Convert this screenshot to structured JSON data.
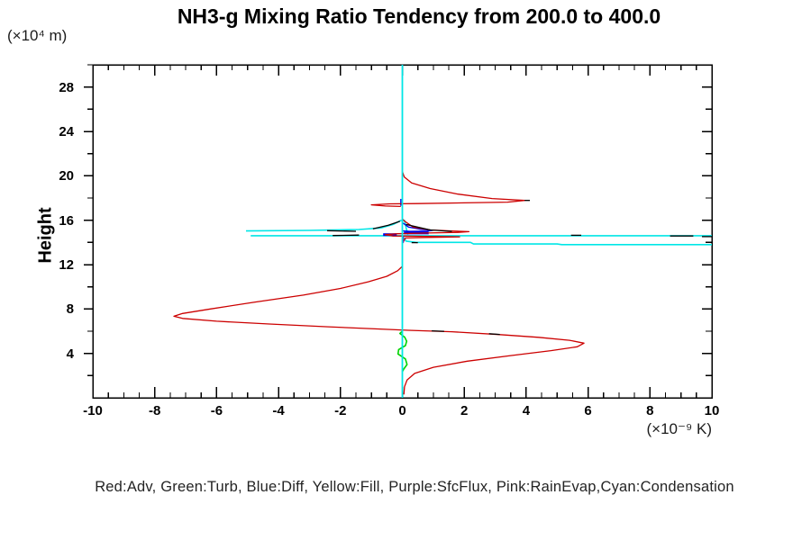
{
  "title": "NH3-g Mixing Ratio Tendency from 200.0 to 400.0",
  "y_unit_label": "(×10⁴ m)",
  "x_unit_label": "(×10⁻⁹ K)",
  "y_axis_label": "Height",
  "legend_text": "Red:Adv, Green:Turb, Blue:Diff, Yellow:Fill, Purple:SfcFlux, Pink:RainEvap,Cyan:Condensation",
  "colors": {
    "background": "#ffffff",
    "axis": "#000000",
    "red_adv": "#cc0000",
    "green_turb": "#00d400",
    "blue_diff": "#0000e6",
    "purple_sfcflux": "#7a00b8",
    "cyan_condensation": "#00e6e6",
    "black_overlay": "#000000"
  },
  "chart_data": {
    "type": "line",
    "title": "NH3-g Mixing Ratio Tendency from 200.0 to 400.0",
    "xlabel": "(×10⁻⁹ K)",
    "ylabel": "Height (×10⁴ m)",
    "xlim": [
      -10,
      10
    ],
    "ylim": [
      0,
      30
    ],
    "grid": false,
    "legend_position": "bottom-text-line",
    "x_major_ticks": [
      -10,
      -8,
      -6,
      -4,
      -2,
      0,
      2,
      4,
      6,
      8,
      10
    ],
    "x_minor_step": 0.5,
    "y_major_ticks": [
      4,
      8,
      12,
      16,
      20,
      24,
      28
    ],
    "y_minor_step": 2,
    "series": [
      {
        "name": "condensation-horizontals",
        "legend": "Cyan:Condensation",
        "color": "#00e6e6",
        "width": 1.6,
        "lines": [
          [
            [
              -5.05,
              15.03
            ],
            [
              -3.0,
              15.08
            ],
            [
              -1.4,
              15.16
            ],
            [
              -0.7,
              15.3
            ],
            [
              -0.3,
              15.62
            ],
            [
              -0.05,
              15.97
            ],
            [
              0.07,
              15.97
            ],
            [
              0.13,
              15.2
            ],
            [
              0.18,
              14.7
            ]
          ],
          [
            [
              -4.9,
              14.6
            ],
            [
              10,
              14.6
            ]
          ],
          [
            [
              0.05,
              14.45
            ],
            [
              0.12,
              14.12
            ],
            [
              0.45,
              14.0
            ],
            [
              2.2,
              14.0
            ],
            [
              2.3,
              13.86
            ],
            [
              5.0,
              13.86
            ],
            [
              5.15,
              13.8
            ],
            [
              10,
              13.8
            ]
          ]
        ]
      },
      {
        "name": "diff",
        "legend": "Blue:Diff",
        "color": "#0000e6",
        "width": 1.3,
        "lines": [
          [
            [
              0,
              15.78
            ],
            [
              0.2,
              15.38
            ],
            [
              0.6,
              15.18
            ],
            [
              1.0,
              15.1
            ],
            [
              0.8,
              15.02
            ],
            [
              0.25,
              15.0
            ],
            [
              0,
              15.04
            ]
          ],
          [
            [
              -0.05,
              17.92
            ],
            [
              -0.05,
              17.3
            ]
          ]
        ]
      },
      {
        "name": "diff-thick-segments",
        "legend": "Blue:Diff",
        "color": "#0000e6",
        "width": 3,
        "lines": [
          [
            [
              -0.62,
              14.7
            ],
            [
              -0.18,
              14.7
            ]
          ],
          [
            [
              0.05,
              14.85
            ],
            [
              0.85,
              14.85
            ]
          ]
        ]
      },
      {
        "name": "adv",
        "legend": "Red:Adv",
        "color": "#cc0000",
        "width": 1.3,
        "lines": [
          [
            [
              0,
              20.4
            ],
            [
              0.06,
              19.9
            ],
            [
              0.3,
              19.35
            ],
            [
              0.9,
              18.85
            ],
            [
              1.8,
              18.35
            ],
            [
              2.9,
              17.95
            ],
            [
              3.95,
              17.78
            ],
            [
              3.4,
              17.63
            ],
            [
              2.0,
              17.56
            ],
            [
              0.5,
              17.5
            ],
            [
              -0.4,
              17.47
            ],
            [
              -1.0,
              17.38
            ],
            [
              -0.55,
              17.28
            ],
            [
              -0.05,
              17.24
            ]
          ],
          [
            [
              0,
              16.12
            ],
            [
              0.08,
              15.9
            ],
            [
              0.35,
              15.38
            ],
            [
              0.9,
              15.12
            ],
            [
              1.6,
              15.03
            ],
            [
              2.15,
              14.97
            ],
            [
              1.8,
              14.9
            ],
            [
              0.8,
              14.85
            ],
            [
              -0.15,
              14.78
            ],
            [
              -0.55,
              14.7
            ],
            [
              -0.3,
              14.58
            ],
            [
              0.7,
              14.55
            ],
            [
              1.85,
              14.5
            ],
            [
              0.8,
              14.44
            ],
            [
              0.1,
              14.4
            ],
            [
              0.04,
              14.1
            ],
            [
              0,
              13.9
            ]
          ],
          [
            [
              0,
              11.85
            ],
            [
              -0.15,
              11.45
            ],
            [
              -0.5,
              10.95
            ],
            [
              -1.1,
              10.45
            ],
            [
              -2.0,
              9.85
            ],
            [
              -3.2,
              9.25
            ],
            [
              -4.8,
              8.6
            ],
            [
              -6.2,
              8.0
            ],
            [
              -7.1,
              7.6
            ],
            [
              -7.38,
              7.35
            ],
            [
              -7.1,
              7.15
            ],
            [
              -6.0,
              6.9
            ],
            [
              -4.3,
              6.65
            ],
            [
              -2.4,
              6.4
            ],
            [
              -0.8,
              6.2
            ],
            [
              0.2,
              6.08
            ],
            [
              1.6,
              5.95
            ],
            [
              3.1,
              5.7
            ],
            [
              4.4,
              5.45
            ],
            [
              5.4,
              5.18
            ],
            [
              5.87,
              4.92
            ],
            [
              5.65,
              4.6
            ],
            [
              4.8,
              4.25
            ],
            [
              3.5,
              3.8
            ],
            [
              2.1,
              3.3
            ],
            [
              1.0,
              2.75
            ],
            [
              0.4,
              2.2
            ],
            [
              0.15,
              1.6
            ],
            [
              0.07,
              1.0
            ],
            [
              0.05,
              0.3
            ]
          ]
        ]
      },
      {
        "name": "black-overlay",
        "legend": "",
        "color": "#000000",
        "width": 1.3,
        "lines": [
          [
            [
              -2.43,
              15.06
            ],
            [
              -1.5,
              15.0
            ]
          ],
          [
            [
              -2.25,
              14.62
            ],
            [
              -1.4,
              14.66
            ]
          ],
          [
            [
              -0.95,
              15.22
            ],
            [
              -0.45,
              15.55
            ],
            [
              -0.08,
              15.9
            ]
          ],
          [
            [
              0.12,
              15.62
            ],
            [
              0.9,
              15.12
            ],
            [
              1.6,
              14.99
            ]
          ],
          [
            [
              5.45,
              14.64
            ],
            [
              5.78,
              14.64
            ]
          ],
          [
            [
              8.65,
              14.58
            ],
            [
              9.4,
              14.58
            ]
          ],
          [
            [
              9.68,
              14.52
            ],
            [
              10,
              14.52
            ]
          ],
          [
            [
              3.95,
              17.78
            ],
            [
              4.12,
              17.78
            ]
          ],
          [
            [
              0.95,
              6.03
            ],
            [
              1.35,
              5.99
            ]
          ],
          [
            [
              2.8,
              5.77
            ],
            [
              3.15,
              5.71
            ]
          ],
          [
            [
              0.3,
              13.98
            ],
            [
              0.5,
              13.98
            ]
          ]
        ]
      },
      {
        "name": "turb",
        "legend": "Green:Turb",
        "color": "#00d400",
        "width": 1.6,
        "lines": [
          [
            [
              0,
              6.0
            ],
            [
              -0.08,
              5.8
            ],
            [
              0.08,
              5.45
            ],
            [
              0.14,
              5.1
            ],
            [
              0.1,
              4.7
            ],
            [
              -0.12,
              4.35
            ],
            [
              -0.14,
              3.95
            ],
            [
              0.1,
              3.5
            ],
            [
              0.15,
              3.0
            ],
            [
              0.05,
              2.6
            ],
            [
              0,
              2.35
            ]
          ]
        ]
      },
      {
        "name": "sfcflux",
        "legend": "Purple:SfcFlux",
        "color": "#7a00b8",
        "width": 1.4,
        "lines": [
          [
            [
              0.03,
              14.55
            ],
            [
              0.03,
              13.95
            ]
          ]
        ]
      },
      {
        "name": "condensation-vertical",
        "legend": "Cyan:Condensation",
        "color": "#00e6e6",
        "width": 1.8,
        "lines": [
          [
            [
              0,
              30
            ],
            [
              0,
              0
            ]
          ]
        ]
      }
    ]
  }
}
